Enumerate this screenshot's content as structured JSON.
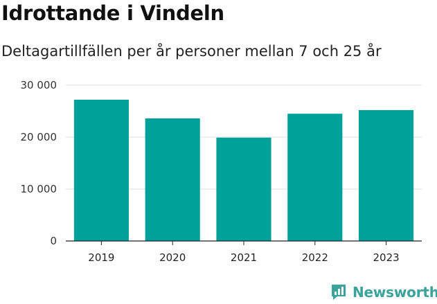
{
  "brand": {
    "name": "Newsworthy",
    "color": "#3aa39a",
    "icon": "newsworthy-logo-icon"
  },
  "chart_data": {
    "type": "bar",
    "title": "Idrottande i Vindeln",
    "subtitle": "Deltagartillfällen per år personer mellan 7 och 25 år",
    "categories": [
      "2019",
      "2020",
      "2021",
      "2022",
      "2023"
    ],
    "values": [
      27200,
      23600,
      19900,
      24500,
      25200
    ],
    "ylim": [
      0,
      30000
    ],
    "yticks": [
      0,
      10000,
      20000,
      30000
    ],
    "ytick_labels": [
      "0",
      "10 000",
      "20 000",
      "30 000"
    ],
    "grid": true,
    "bar_color": "#00a19a"
  }
}
